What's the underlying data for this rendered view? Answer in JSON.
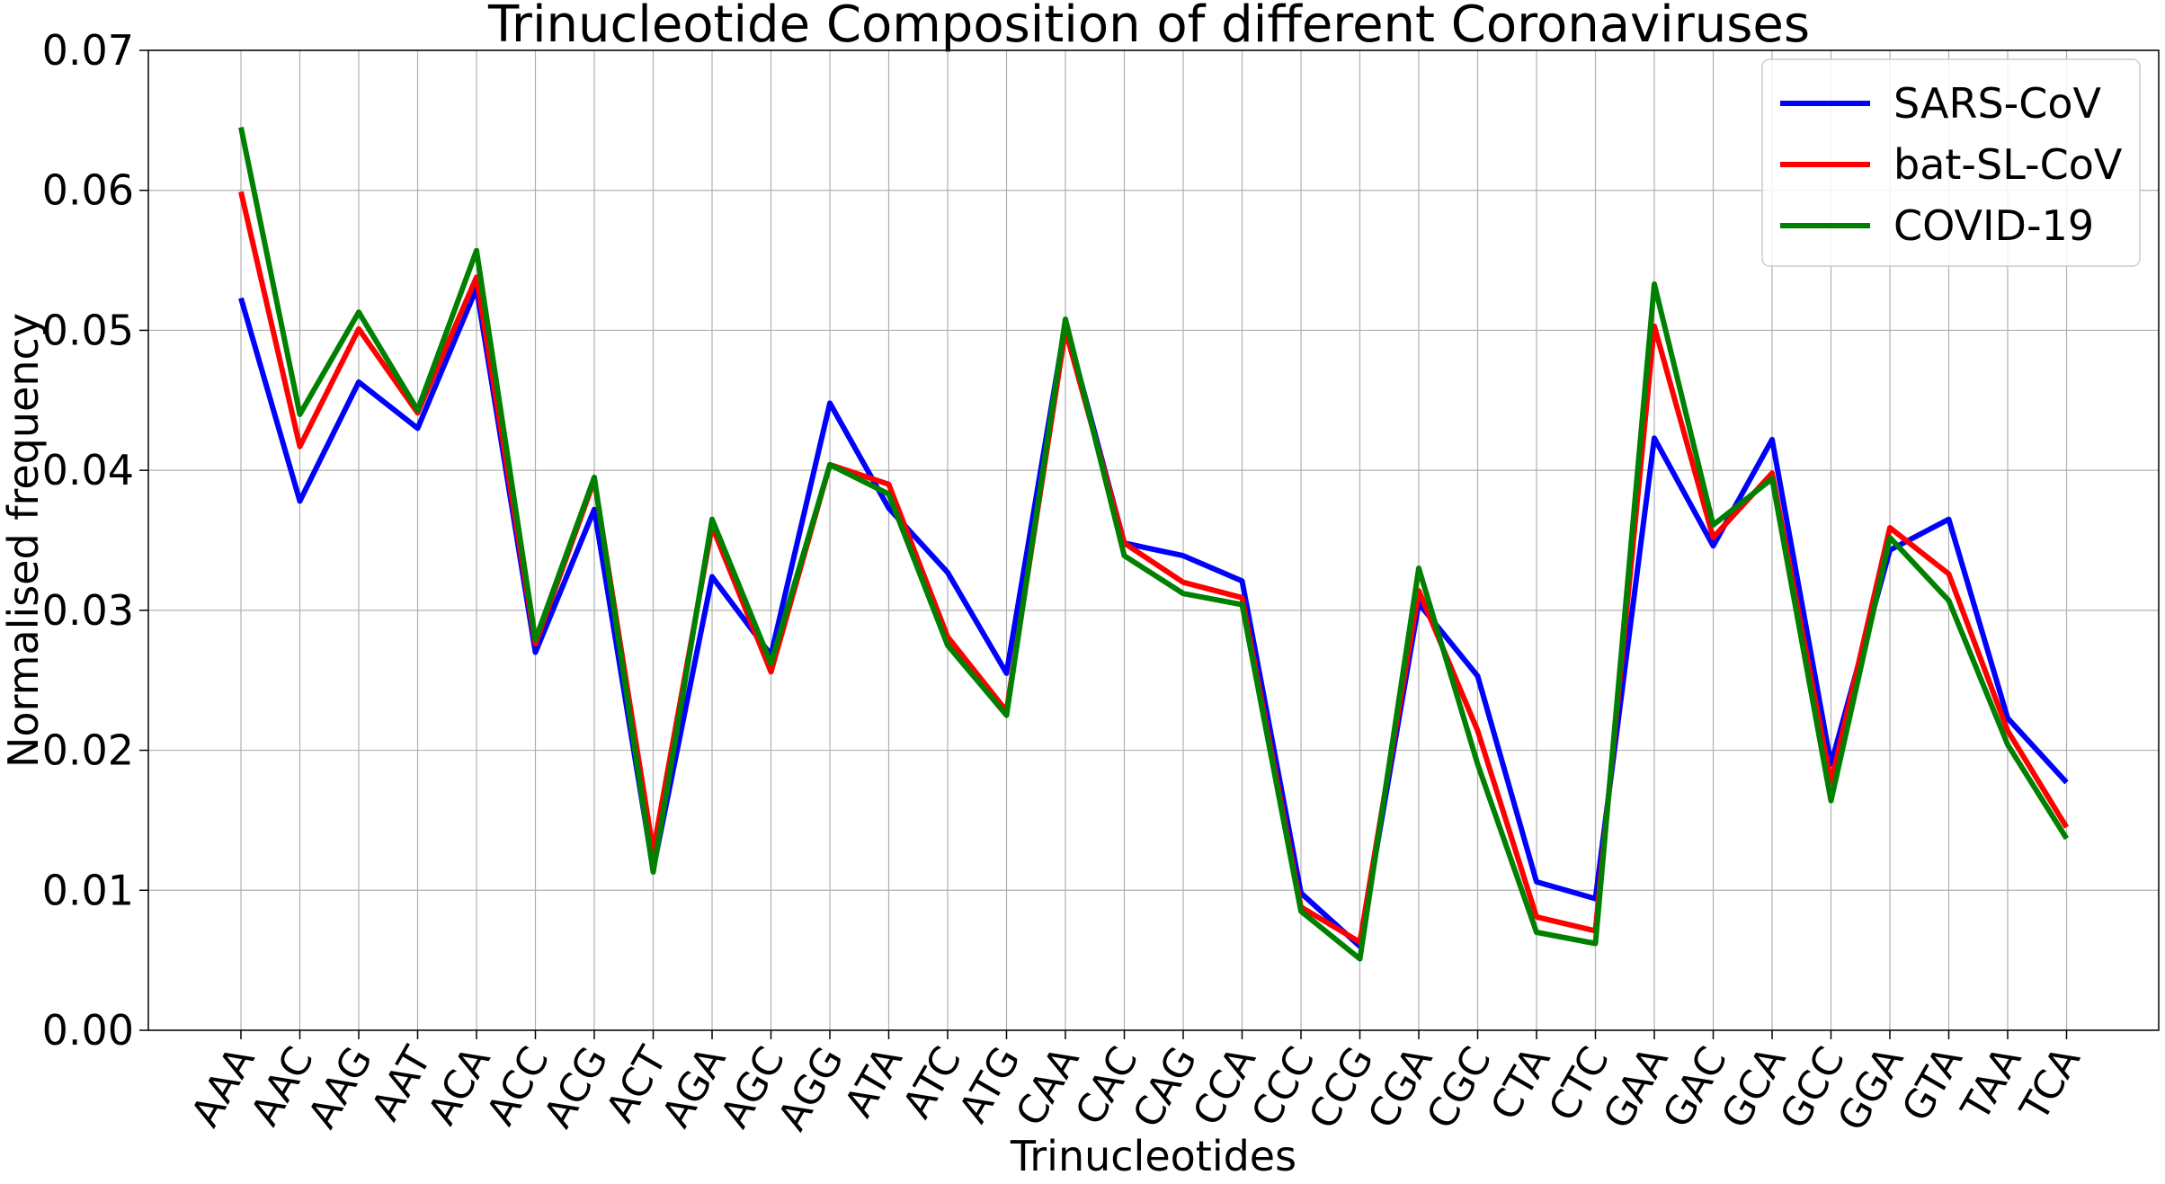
{
  "chart_data": {
    "type": "line",
    "title": "Trinucleotide Composition of different Coronaviruses",
    "xlabel": "Trinucleotides",
    "ylabel": "Normalised frequency",
    "ylim": [
      0,
      0.07
    ],
    "yticks": [
      "0.00",
      "0.01",
      "0.02",
      "0.03",
      "0.04",
      "0.05",
      "0.06",
      "0.07"
    ],
    "grid": true,
    "legend_position": "top-right",
    "categories": [
      "AAA",
      "AAC",
      "AAG",
      "AAT",
      "ACA",
      "ACC",
      "ACG",
      "ACT",
      "AGA",
      "AGC",
      "AGG",
      "ATA",
      "ATC",
      "ATG",
      "CAA",
      "CAC",
      "CAG",
      "CCA",
      "CCC",
      "CCG",
      "CGA",
      "CGC",
      "CTA",
      "CTC",
      "GAA",
      "GAC",
      "GCA",
      "GCC",
      "GGA",
      "GTA",
      "TAA",
      "TCA"
    ],
    "series": [
      {
        "name": "SARS-CoV",
        "color": "#0000ff",
        "values": [
          0.0523,
          0.0378,
          0.0463,
          0.043,
          0.053,
          0.027,
          0.0372,
          0.0115,
          0.0324,
          0.0268,
          0.0448,
          0.0373,
          0.0327,
          0.0255,
          0.0505,
          0.0348,
          0.0339,
          0.0321,
          0.0098,
          0.006,
          0.0305,
          0.0253,
          0.0106,
          0.0094,
          0.0423,
          0.0346,
          0.0422,
          0.019,
          0.0343,
          0.0365,
          0.0223,
          0.0177
        ]
      },
      {
        "name": "bat-SL-CoV",
        "color": "#ff0000",
        "values": [
          0.0599,
          0.0417,
          0.0501,
          0.0441,
          0.0538,
          0.0276,
          0.0393,
          0.0128,
          0.036,
          0.0256,
          0.0404,
          0.039,
          0.0281,
          0.0228,
          0.05,
          0.0348,
          0.032,
          0.0309,
          0.0088,
          0.0063,
          0.0314,
          0.0214,
          0.0081,
          0.0071,
          0.0503,
          0.0352,
          0.0398,
          0.0177,
          0.0359,
          0.0326,
          0.0214,
          0.0145
        ]
      },
      {
        "name": "COVID-19",
        "color": "#008000",
        "values": [
          0.0645,
          0.044,
          0.0513,
          0.0443,
          0.0557,
          0.0279,
          0.0395,
          0.0113,
          0.0365,
          0.0262,
          0.0404,
          0.0383,
          0.0275,
          0.0225,
          0.0508,
          0.0339,
          0.0312,
          0.0304,
          0.0085,
          0.0051,
          0.033,
          0.019,
          0.007,
          0.0062,
          0.0533,
          0.0361,
          0.0394,
          0.0164,
          0.0352,
          0.0307,
          0.0204,
          0.0137
        ]
      }
    ]
  }
}
